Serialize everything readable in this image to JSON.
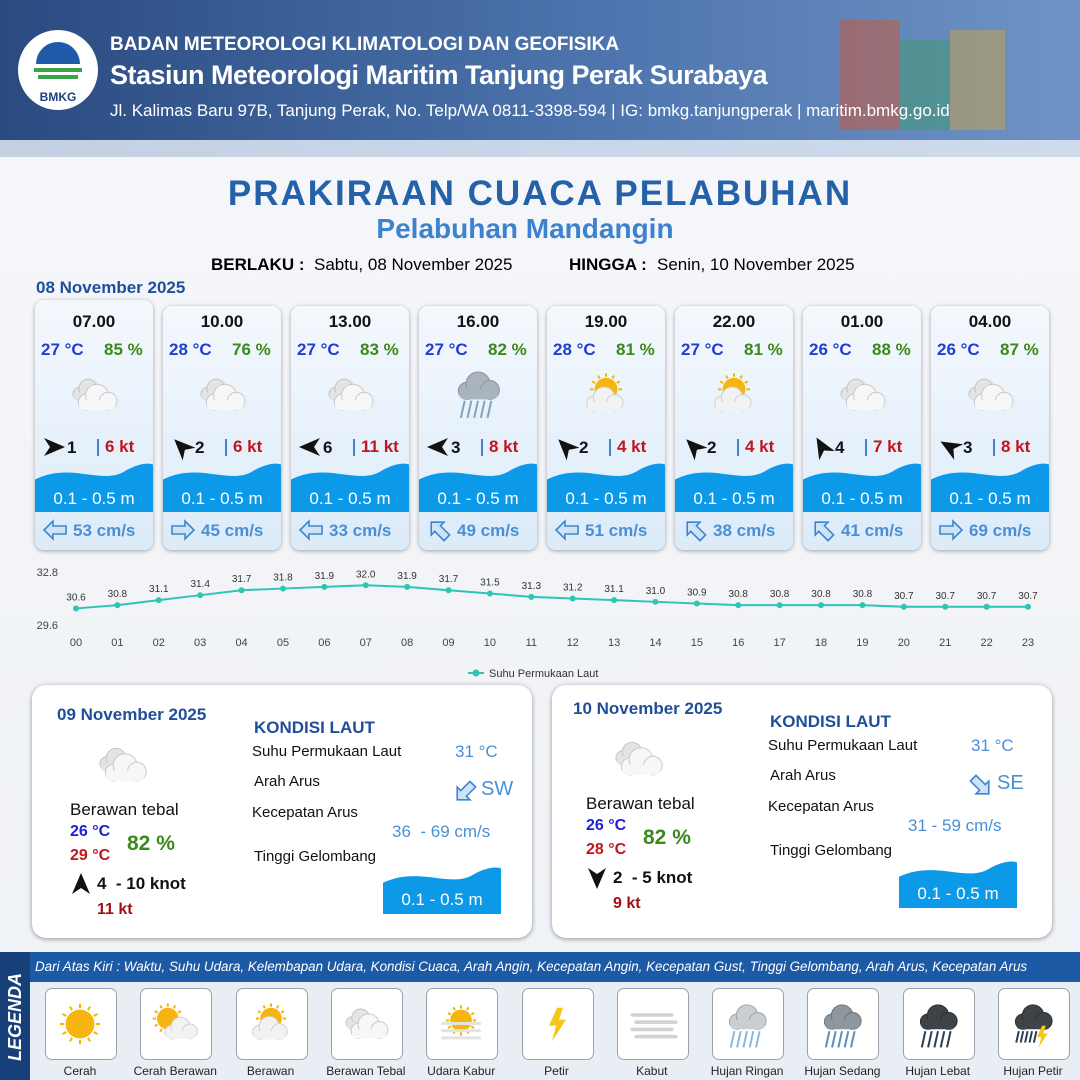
{
  "header": {
    "org": "BADAN METEOROLOGI KLIMATOLOGI DAN GEOFISIKA",
    "station": "Stasiun Meteorologi Maritim Tanjung Perak Surabaya",
    "address": "Jl. Kalimas Baru 97B, Tanjung Perak, No. Telp/WA 0811-3398-594 | IG: bmkg.tanjungperak | maritim.bmkg.go.id",
    "logo_text": "BMKG"
  },
  "title": "PRAKIRAAN CUACA PELABUHAN",
  "subtitle": "Pelabuhan Mandangin",
  "validity": {
    "from_label": "BERLAKU :",
    "from": "Sabtu, 08 November 2025",
    "to_label": "HINGGA :",
    "to": "Senin, 10 November 2025"
  },
  "forecast": {
    "date": "08 November 2025",
    "cards": [
      {
        "time": "07.00",
        "temperature": "27 °C",
        "humidity": "85 %",
        "wind": "1",
        "gust": "6 kt",
        "wave": "0.1 - 0.5 m",
        "current": "53 cm/s"
      },
      {
        "time": "10.00",
        "temperature": "28 °C",
        "humidity": "76 %",
        "wind": "2",
        "gust": "6 kt",
        "wave": "0.1 - 0.5 m",
        "current": "45 cm/s"
      },
      {
        "time": "13.00",
        "temperature": "27 °C",
        "humidity": "83 %",
        "wind": "6",
        "gust": "11 kt",
        "wave": "0.1 - 0.5 m",
        "current": "33 cm/s"
      },
      {
        "time": "16.00",
        "temperature": "27 °C",
        "humidity": "82 %",
        "wind": "3",
        "gust": "8 kt",
        "wave": "0.1 - 0.5 m",
        "current": "49 cm/s"
      },
      {
        "time": "19.00",
        "temperature": "28 °C",
        "humidity": "81 %",
        "wind": "2",
        "gust": "4 kt",
        "wave": "0.1 - 0.5 m",
        "current": "51 cm/s"
      },
      {
        "time": "22.00",
        "temperature": "27 °C",
        "humidity": "81 %",
        "wind": "2",
        "gust": "4 kt",
        "wave": "0.1 - 0.5 m",
        "current": "38 cm/s"
      },
      {
        "time": "01.00",
        "temperature": "26 °C",
        "humidity": "88 %",
        "wind": "4",
        "gust": "7 kt",
        "wave": "0.1 - 0.5 m",
        "current": "41 cm/s"
      },
      {
        "time": "04.00",
        "temperature": "26 °C",
        "humidity": "87 %",
        "wind": "3",
        "gust": "8 kt",
        "wave": "0.1 - 0.5 m",
        "current": "69 cm/s"
      }
    ]
  },
  "chart_data": {
    "type": "line",
    "categories": [
      "00",
      "01",
      "02",
      "03",
      "04",
      "05",
      "06",
      "07",
      "08",
      "09",
      "10",
      "11",
      "12",
      "13",
      "14",
      "15",
      "16",
      "17",
      "18",
      "19",
      "20",
      "21",
      "22",
      "23"
    ],
    "series": [
      {
        "name": "Suhu Permukaan Laut",
        "color": "#2ec4b6",
        "values": [
          30.6,
          30.8,
          31.1,
          31.4,
          31.7,
          31.8,
          31.9,
          32.0,
          31.9,
          31.7,
          31.5,
          31.3,
          31.2,
          31.1,
          31.0,
          30.9,
          30.8,
          30.8,
          30.8,
          30.8,
          30.7,
          30.7,
          30.7,
          30.7
        ],
        "value_labels": [
          "30.6",
          "30.8",
          "31.1",
          "31.4",
          "31.7",
          "31.8",
          "31.9",
          "32.0",
          "31.9",
          "31.7",
          "31.5",
          "31.3",
          "31.2",
          "31.1",
          "31.0",
          "30.9",
          "30.8",
          "30.8",
          "30.8",
          "30.8",
          "30.7",
          "30.7",
          "30.7",
          "30.7"
        ]
      }
    ],
    "ylim": [
      29.6,
      32.8
    ],
    "yticks": [
      29.6,
      32.8
    ],
    "grid": false,
    "legend": "bottom"
  },
  "daily": [
    {
      "date": "09 November 2025",
      "condition": "Berawan tebal",
      "temp_min": "26 °C",
      "temp_max": "29 °C",
      "humidity": "82 %",
      "wind": "4  - 10 knot",
      "gust": "11 kt",
      "sea_title": "KONDISI LAUT",
      "sst_label": "Suhu Permukaan Laut",
      "sst": "31 °C",
      "current_dir_label": "Arah Arus",
      "current_dir": "SW",
      "current_speed_label": "Kecepatan Arus",
      "current_speed": "36  - 69 cm/s",
      "wave_label": "Tinggi Gelombang",
      "wave": "0.1 - 0.5 m"
    },
    {
      "date": "10 November 2025",
      "condition": "Berawan tebal",
      "temp_min": "26 °C",
      "temp_max": "28 °C",
      "humidity": "82 %",
      "wind": "2  - 5 knot",
      "gust": "9 kt",
      "sea_title": "KONDISI LAUT",
      "sst_label": "Suhu Permukaan Laut",
      "sst": "31 °C",
      "current_dir_label": "Arah Arus",
      "current_dir": "SE",
      "current_speed_label": "Kecepatan Arus",
      "current_speed": "31 - 59 cm/s",
      "wave_label": "Tinggi Gelombang",
      "wave": "0.1 - 0.5 m"
    }
  ],
  "legend": {
    "title": "LEGENDA",
    "description": "Dari Atas Kiri : Waktu, Suhu Udara, Kelembapan Udara, Kondisi Cuaca, Arah Angin, Kecepatan Angin, Kecepatan Gust, Tinggi Gelombang, Arah Arus, Kecepatan Arus",
    "items": [
      "Cerah",
      "Cerah Berawan",
      "Berawan",
      "Berawan Tebal",
      "Udara Kabur",
      "Petir",
      "Kabut",
      "Hujan Ringan",
      "Hujan Sedang",
      "Hujan Lebat",
      "Hujan Petir"
    ]
  }
}
